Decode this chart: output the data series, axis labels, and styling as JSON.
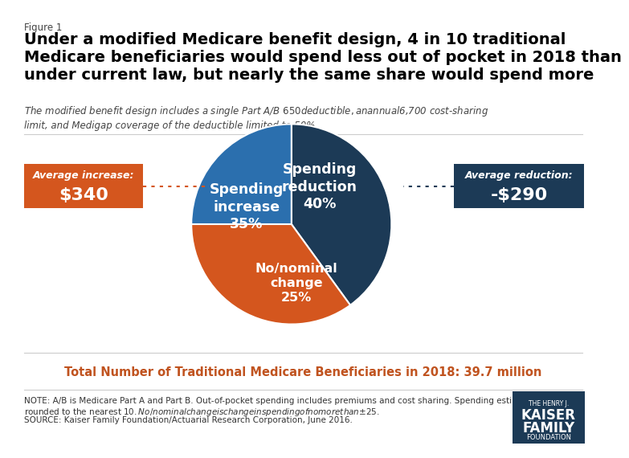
{
  "figure_label": "Figure 1",
  "title": "Under a modified Medicare benefit design, 4 in 10 traditional\nMedicare beneficiaries would spend less out of pocket in 2018 than\nunder current law, but nearly the same share would spend more",
  "subtitle": "The modified benefit design includes a single Part A/B $650 deductible, an annual $6,700 cost-sharing\nlimit, and Medigap coverage of the deductible limited to 50%",
  "pie_values": [
    40,
    35,
    25
  ],
  "pie_colors": [
    "#1c3a56",
    "#d4561e",
    "#2b6fae"
  ],
  "pie_startangle": 90,
  "pie_label_reduction": "Spending\nreduction\n40%",
  "pie_label_increase": "Spending\nincrease\n35%",
  "pie_label_nominal": "No/nominal\nchange\n25%",
  "left_box_label": "Average increase:",
  "left_box_value": "$340",
  "left_box_color": "#d4561e",
  "right_box_label": "Average reduction:",
  "right_box_value": "-$290",
  "right_box_color": "#1c3a56",
  "total_label": "Total Number of Traditional Medicare Beneficiaries in 2018: 39.7 million",
  "note_line1": "NOTE: A/B is Medicare Part A and Part B. Out-of-pocket spending includes premiums and cost sharing. Spending estimates are",
  "note_line2": "rounded to the nearest $10. No/nominal change is change in spending of no more than ±$25.",
  "note_line3": "SOURCE: Kaiser Family Foundation/Actuarial Research Corporation, June 2016.",
  "kaiser_box_color": "#1c3a56",
  "background_color": "#ffffff",
  "title_color": "#000000",
  "subtitle_color": "#444444",
  "total_label_color": "#c0531f"
}
